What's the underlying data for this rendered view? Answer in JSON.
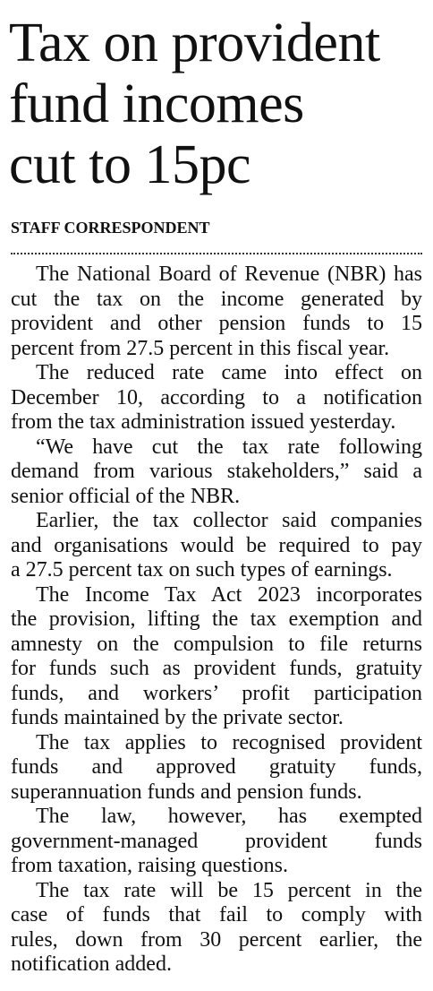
{
  "headline": {
    "lines": [
      "Tax on provident",
      "fund incomes",
      "cut to 15pc"
    ]
  },
  "byline": "STAFF CORRESPONDENT",
  "body": {
    "paragraphs": [
      {
        "lines": [
          "The National Board of Revenue (NBR) has",
          "cut the tax on the income generated by",
          "provident and other pension funds to 15",
          "percent from 27.5 percent in this fiscal year."
        ]
      },
      {
        "lines": [
          "The reduced rate came into effect on",
          "December 10, according to a notification",
          "from the tax administration issued yesterday."
        ]
      },
      {
        "lines": [
          "“We have cut the tax rate following",
          "demand from various stakeholders,” said a",
          "senior official of the NBR."
        ]
      },
      {
        "lines": [
          "Earlier, the tax collector said companies",
          "and organisations would be required to pay",
          "a 27.5 percent tax on such types of earnings."
        ]
      },
      {
        "lines": [
          "The Income Tax Act 2023 incorporates",
          "the provision, lifting the tax exemption and",
          "amnesty on the compulsion to file returns",
          "for funds such as provident funds, gratuity",
          "funds, and workers’ profit participation",
          "funds maintained by the private sector."
        ]
      },
      {
        "lines": [
          "The tax applies to recognised provident",
          "funds and approved gratuity funds,",
          "superannuation funds and pension funds."
        ]
      },
      {
        "lines": [
          "The law, however, has exempted",
          "government-managed provident funds",
          "from taxation, raising questions."
        ]
      },
      {
        "lines": [
          "The tax rate will be 15 percent in the",
          "case of funds that fail to comply with",
          "rules, down from 30 percent earlier, the",
          "notification added."
        ]
      }
    ]
  }
}
